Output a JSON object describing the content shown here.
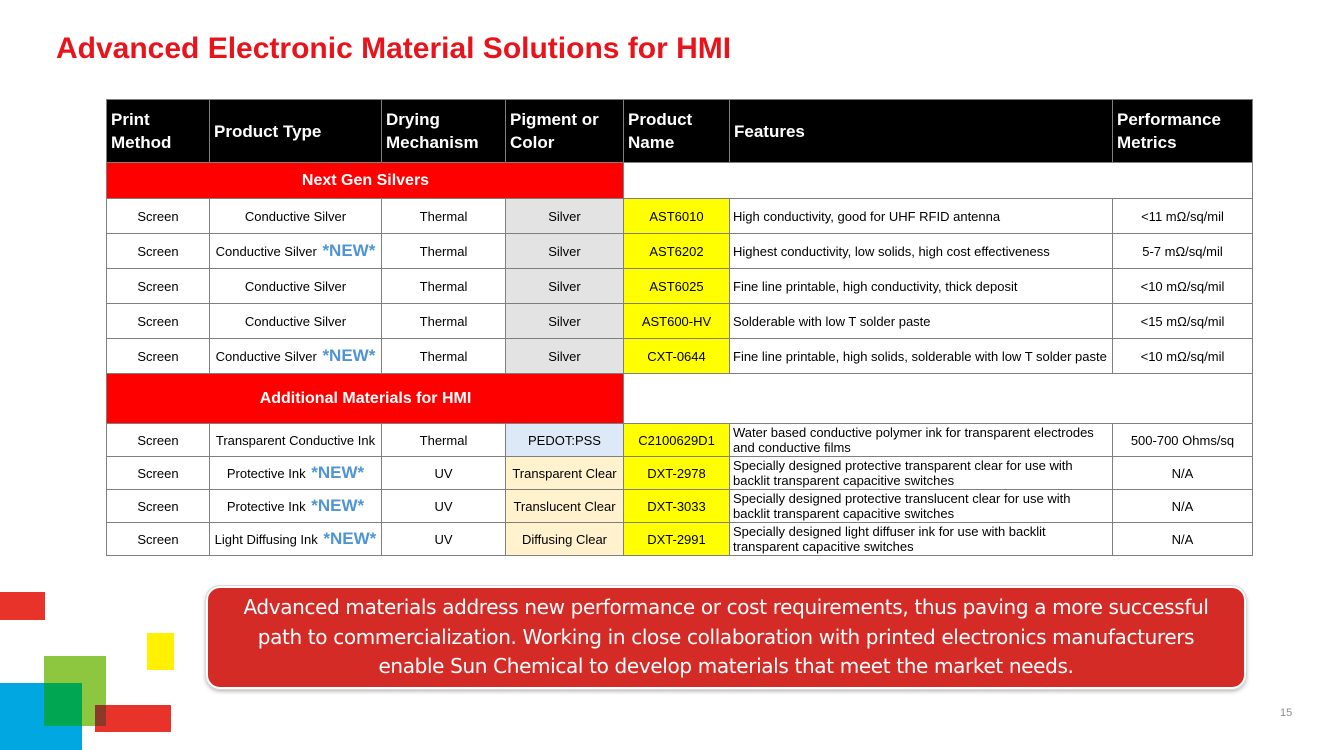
{
  "title": "Advanced Electronic Material Solutions for HMI",
  "table": {
    "headers": [
      "Print Method",
      "Product Type",
      "Drying Mechanism",
      "Pigment or Color",
      "Product Name",
      "Features",
      "Performance Metrics"
    ],
    "sections": [
      {
        "label": "Next Gen Silvers",
        "rows": [
          {
            "print_method": "Screen",
            "product_type": "Conductive Silver",
            "new": "",
            "drying": "Thermal",
            "pigment": "Silver",
            "product_name": "AST6010",
            "features": "High conductivity, good for UHF RFID antenna",
            "metrics": "<11 mΩ/sq/mil"
          },
          {
            "print_method": "Screen",
            "product_type": "Conductive Silver",
            "new": "*NEW*",
            "drying": "Thermal",
            "pigment": "Silver",
            "product_name": "AST6202",
            "features": "Highest conductivity, low solids, high cost effectiveness",
            "metrics": "5-7 mΩ/sq/mil"
          },
          {
            "print_method": "Screen",
            "product_type": "Conductive Silver",
            "new": "",
            "drying": "Thermal",
            "pigment": "Silver",
            "product_name": "AST6025",
            "features": "Fine line printable, high conductivity, thick deposit",
            "metrics": "<10 mΩ/sq/mil"
          },
          {
            "print_method": "Screen",
            "product_type": "Conductive Silver",
            "new": "",
            "drying": "Thermal",
            "pigment": "Silver",
            "product_name": "AST600-HV",
            "features": "Solderable with low T solder paste",
            "metrics": "<15 mΩ/sq/mil"
          },
          {
            "print_method": "Screen",
            "product_type": "Conductive Silver",
            "new": "*NEW*",
            "drying": "Thermal",
            "pigment": "Silver",
            "product_name": "CXT-0644",
            "features": "Fine line printable, high solids, solderable with low T solder paste",
            "metrics": "<10 mΩ/sq/mil"
          }
        ]
      },
      {
        "label": "Additional Materials for HMI",
        "rows": [
          {
            "print_method": "Screen",
            "product_type": "Transparent Conductive Ink",
            "new": "",
            "drying": "Thermal",
            "pigment": "PEDOT:PSS",
            "product_name": "C2100629D1",
            "features": "Water based conductive polymer ink for transparent electrodes and conductive films",
            "metrics": "500-700 Ohms/sq"
          },
          {
            "print_method": "Screen",
            "product_type": "Protective Ink",
            "new": "*NEW*",
            "drying": "UV",
            "pigment": "Transparent Clear",
            "product_name": "DXT-2978",
            "features": "Specially designed protective transparent clear for use with backlit transparent capacitive switches",
            "metrics": "N/A"
          },
          {
            "print_method": "Screen",
            "product_type": "Protective Ink",
            "new": "*NEW*",
            "drying": "UV",
            "pigment": "Translucent Clear",
            "product_name": "DXT-3033",
            "features": "Specially designed protective translucent clear for use with backlit transparent capacitive switches",
            "metrics": "N/A"
          },
          {
            "print_method": "Screen",
            "product_type": "Light Diffusing Ink",
            "new": "*NEW*",
            "drying": "UV",
            "pigment": "Diffusing Clear",
            "product_name": "DXT-2991",
            "features": "Specially designed light diffuser ink for use with backlit transparent capacitive switches",
            "metrics": "N/A"
          }
        ]
      }
    ]
  },
  "callout": {
    "text": "Advanced materials address new performance or cost requirements, thus paving a more successful path to commercialization. Working in close collaboration with printed electronics manufacturers enable Sun Chemical to develop materials that meet the market needs."
  },
  "page_number": "15",
  "colors": {
    "title": "#e8141c",
    "section_header": "#ff0000",
    "new_tag": "#4f94d4",
    "product_name_bg": "#ffff00",
    "callout_bg": "#d52b27"
  }
}
